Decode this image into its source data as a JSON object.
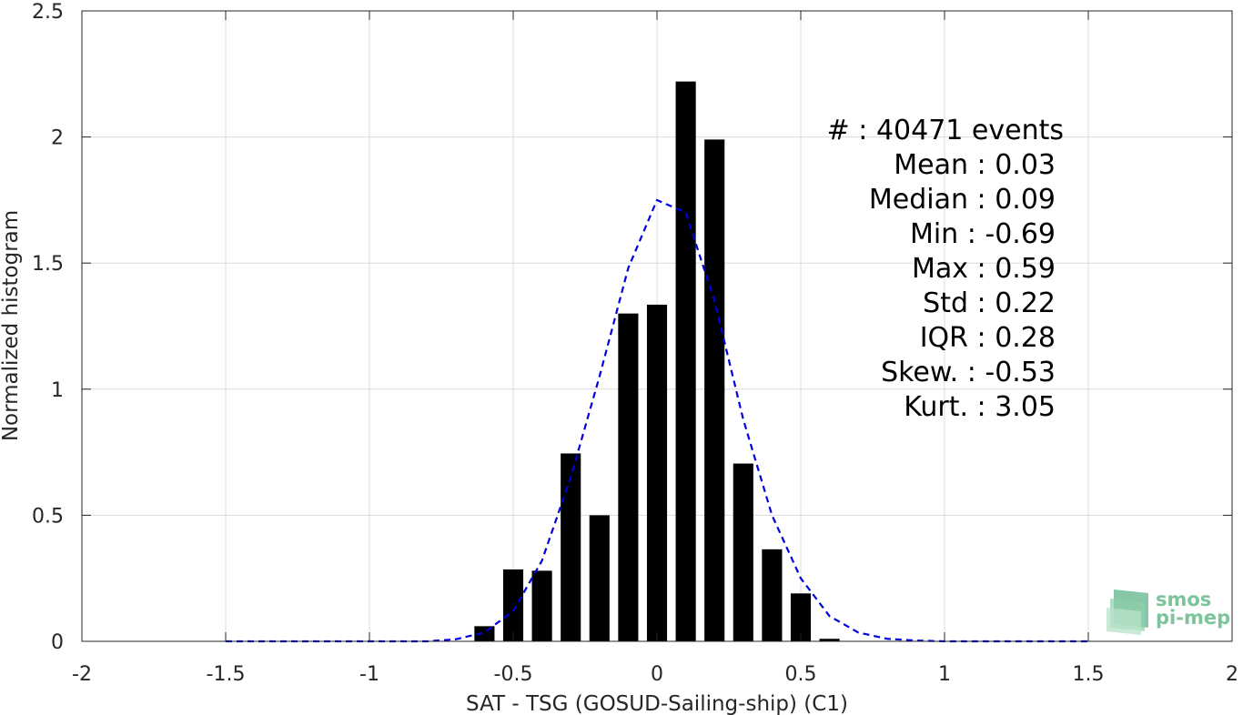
{
  "chart_data": {
    "type": "bar",
    "title": "",
    "xlabel": "SAT - TSG (GOSUD-Sailing-ship) (C1)",
    "ylabel": "Normalized histogram",
    "xlim": [
      -2,
      2
    ],
    "ylim": [
      0,
      2.5
    ],
    "xticks": [
      -2,
      -1.5,
      -1,
      -0.5,
      0,
      0.5,
      1,
      1.5,
      2
    ],
    "xtick_labels": [
      "-2",
      "-1.5",
      "-1",
      "-0.5",
      "0",
      "0.5",
      "1",
      "1.5",
      "2"
    ],
    "yticks": [
      0,
      0.5,
      1,
      1.5,
      2,
      2.5
    ],
    "ytick_labels": [
      "0",
      "0.5",
      "1",
      "1.5",
      "2",
      "2.5"
    ],
    "grid": true,
    "bar_width": 0.07,
    "bar_color": "#000000",
    "bars": {
      "x": [
        -0.6,
        -0.5,
        -0.4,
        -0.3,
        -0.2,
        -0.1,
        0.0,
        0.1,
        0.2,
        0.3,
        0.4,
        0.5,
        0.6
      ],
      "values": [
        0.06,
        0.285,
        0.28,
        0.745,
        0.5,
        1.3,
        1.335,
        2.22,
        1.99,
        0.705,
        0.365,
        0.19,
        0.01
      ]
    },
    "fit_curve": {
      "style": "dashed",
      "color": "#0000dd",
      "x": [
        -1.5,
        -1.4,
        -1.3,
        -1.2,
        -1.1,
        -1.0,
        -0.9,
        -0.8,
        -0.7,
        -0.6,
        -0.5,
        -0.4,
        -0.3,
        -0.2,
        -0.1,
        0.0,
        0.1,
        0.2,
        0.3,
        0.4,
        0.5,
        0.6,
        0.7,
        0.8,
        0.9,
        1.0,
        1.1,
        1.2,
        1.3,
        1.4,
        1.5
      ],
      "y": [
        0,
        0,
        0,
        0,
        0,
        0,
        0,
        0,
        0.008,
        0.035,
        0.12,
        0.32,
        0.65,
        1.05,
        1.48,
        1.75,
        1.7,
        1.35,
        0.88,
        0.5,
        0.25,
        0.1,
        0.035,
        0.01,
        0.003,
        0,
        0,
        0,
        0,
        0,
        0
      ]
    },
    "annotations": [
      "#  : 40471 events",
      "Mean : 0.03",
      "Median : 0.09",
      "Min : -0.69",
      "Max : 0.59",
      "Std : 0.22",
      "IQR : 0.28",
      "Skew. : -0.53",
      "Kurt. : 3.05"
    ]
  },
  "logo": {
    "line1": "smos",
    "line2": "pi-mep",
    "color": "#7cc49a"
  }
}
